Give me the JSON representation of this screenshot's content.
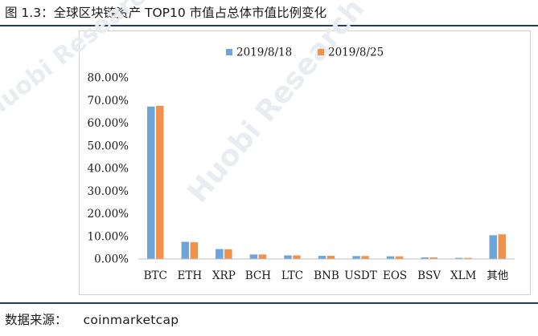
{
  "figure": {
    "title": "图 1.3：全球区块链资产 TOP10 市值占总体市值比例变化",
    "source_label": "数据来源：",
    "source_value": "coinmarketcap",
    "watermark": "Huobi Research"
  },
  "colors": {
    "series_1": "#6fa4d8",
    "series_2": "#f0924a",
    "rule": "#1f3b73",
    "axis_text": "#1a1a1a"
  },
  "chart_data": {
    "type": "bar",
    "title": "",
    "xlabel": "",
    "ylabel": "",
    "ylim": [
      0,
      80
    ],
    "yticks": [
      "0.00%",
      "10.00%",
      "20.00%",
      "30.00%",
      "40.00%",
      "50.00%",
      "60.00%",
      "70.00%",
      "80.00%"
    ],
    "grid": false,
    "legend_position": "top-center",
    "categories": [
      "BTC",
      "ETH",
      "XRP",
      "BCH",
      "LTC",
      "BNB",
      "USDT",
      "EOS",
      "BSV",
      "XLM",
      "其他"
    ],
    "series": [
      {
        "name": "2019/8/18",
        "values": [
          67.3,
          7.6,
          4.4,
          2.0,
          1.6,
          1.4,
          1.3,
          1.2,
          0.7,
          0.5,
          10.5
        ]
      },
      {
        "name": "2019/8/25",
        "values": [
          67.6,
          7.4,
          4.3,
          2.0,
          1.6,
          1.4,
          1.3,
          1.2,
          0.7,
          0.5,
          10.9
        ]
      }
    ]
  }
}
